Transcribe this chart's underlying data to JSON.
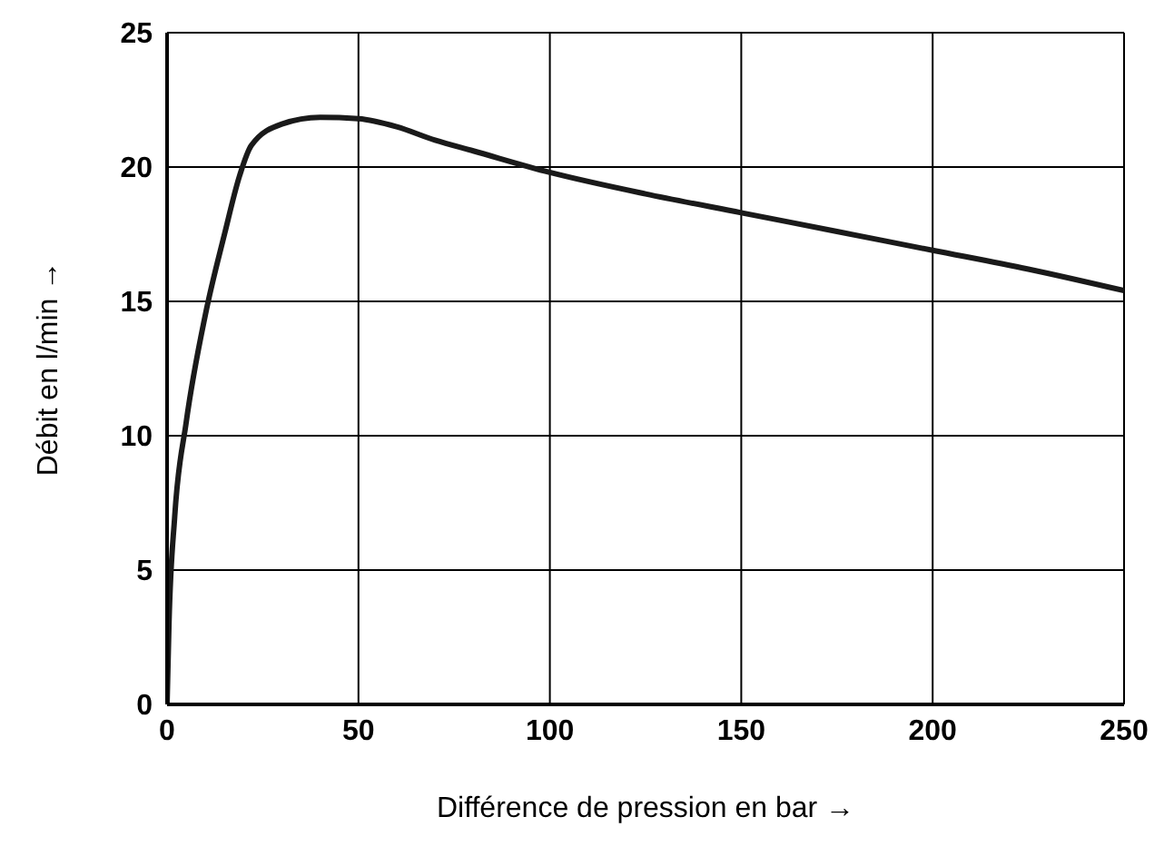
{
  "chart_data": {
    "type": "line",
    "xlabel": "Différence de pression en bar →",
    "ylabel": "Débit en l/min →",
    "xlim": [
      0,
      250
    ],
    "ylim": [
      0,
      25
    ],
    "xticks": [
      0,
      50,
      100,
      150,
      200,
      250
    ],
    "yticks": [
      0,
      5,
      10,
      15,
      20,
      25
    ],
    "grid": true,
    "marker": "none",
    "line_style": "solid",
    "x": [
      0,
      0.5,
      2,
      5,
      10,
      15,
      19,
      22,
      30,
      40,
      50,
      60,
      70,
      80,
      100,
      125,
      150,
      175,
      200,
      225,
      250
    ],
    "series": [
      {
        "color": "#1a1a1a",
        "values": [
          0,
          3,
          7,
          10.5,
          14.5,
          17.5,
          19.7,
          20.8,
          21.6,
          21.85,
          21.8,
          21.5,
          21,
          20.6,
          19.8,
          19,
          18.3,
          17.6,
          16.9,
          16.2,
          15.4
        ]
      }
    ]
  }
}
